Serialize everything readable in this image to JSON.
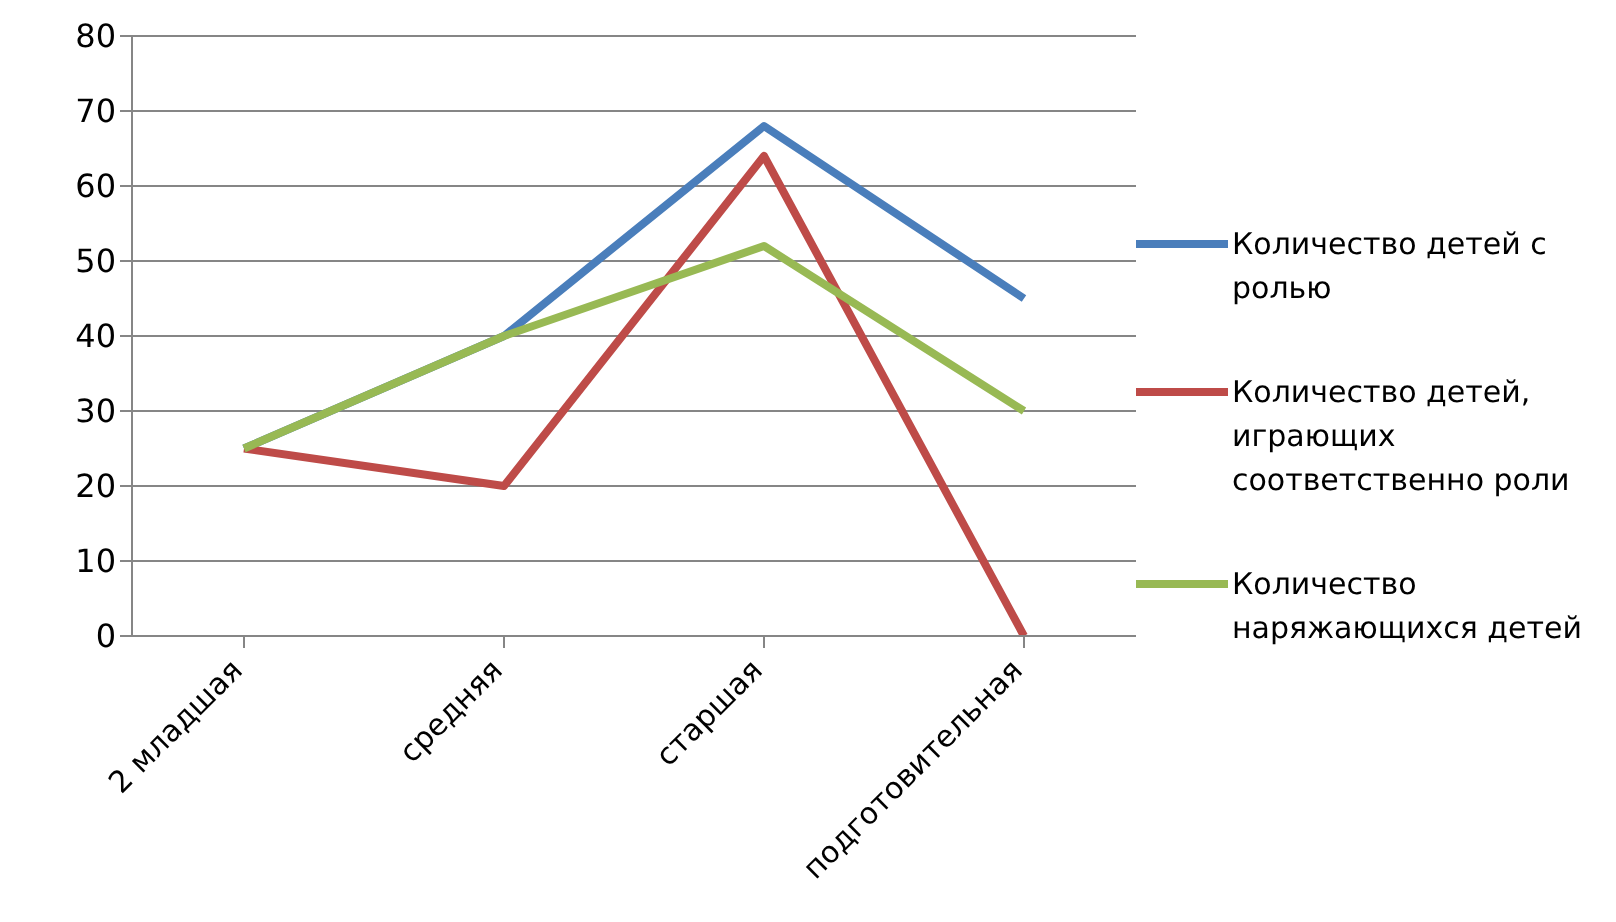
{
  "chart_data": {
    "type": "line",
    "categories": [
      "2 младшая",
      "средняя",
      "старшая",
      "подготовительная"
    ],
    "series": [
      {
        "name": "Количество детей с ролью",
        "color": "#4a7ebb",
        "values": [
          25,
          40,
          68,
          45
        ]
      },
      {
        "name": "Количество детей, играющих соответственно роли",
        "color": "#be4b48",
        "values": [
          25,
          20,
          64,
          0
        ]
      },
      {
        "name": "Количество наряжающихся детей",
        "color": "#98b954",
        "values": [
          25,
          40,
          52,
          30
        ]
      }
    ],
    "ylim": [
      0,
      80
    ],
    "yticks": [
      0,
      10,
      20,
      30,
      40,
      50,
      60,
      70,
      80
    ],
    "grid": "y",
    "legend": "right",
    "marker": "none",
    "line_style": "solid"
  }
}
